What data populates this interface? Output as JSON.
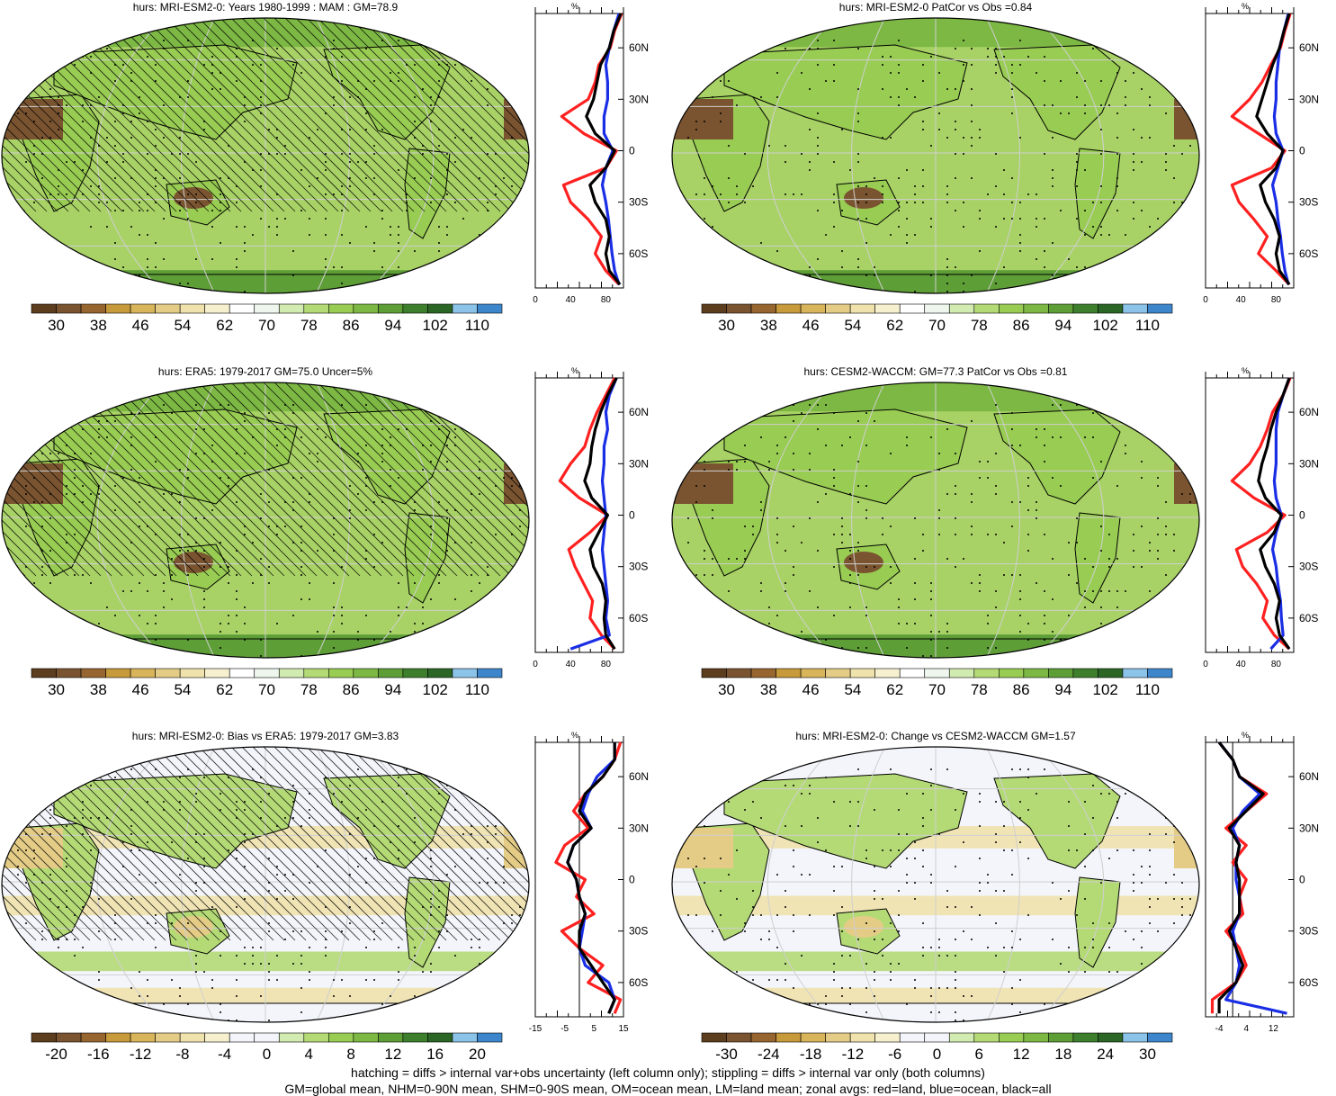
{
  "panels": [
    {
      "id": "p1",
      "title": "hurs: MRI-ESM2-0: Years 1980-1999 : MAM : GM=78.9",
      "type": "abs",
      "hatching": true,
      "colorbar": {
        "labels": [
          "30",
          "38",
          "46",
          "54",
          "62",
          "70",
          "78",
          "86",
          "94",
          "102",
          "110"
        ]
      },
      "zonal": {
        "unit": "%",
        "xticks": [
          "0",
          "40",
          "80"
        ],
        "xrange": [
          0,
          100
        ],
        "lat_labels": [
          "60N",
          "30N",
          "0",
          "30S",
          "60S"
        ]
      }
    },
    {
      "id": "p2",
      "title": "hurs: MRI-ESM2-0 PatCor vs Obs =0.84",
      "type": "abs",
      "hatching": false,
      "colorbar": {
        "labels": [
          "30",
          "38",
          "46",
          "54",
          "62",
          "70",
          "78",
          "86",
          "94",
          "102",
          "110"
        ]
      },
      "zonal": {
        "unit": "%",
        "xticks": [
          "0",
          "40",
          "80"
        ],
        "xrange": [
          0,
          100
        ],
        "lat_labels": [
          "60N",
          "30N",
          "0",
          "30S",
          "60S"
        ]
      }
    },
    {
      "id": "p3",
      "title": "hurs: ERA5: 1979-2017 GM=75.0 Uncer=5%",
      "type": "abs",
      "hatching": true,
      "colorbar": {
        "labels": [
          "30",
          "38",
          "46",
          "54",
          "62",
          "70",
          "78",
          "86",
          "94",
          "102",
          "110"
        ]
      },
      "zonal": {
        "unit": "%",
        "xticks": [
          "0",
          "40",
          "80"
        ],
        "xrange": [
          0,
          100
        ],
        "lat_labels": [
          "60N",
          "30N",
          "0",
          "30S",
          "60S"
        ]
      }
    },
    {
      "id": "p4",
      "title": "hurs: CESM2-WACCM: GM=77.3 PatCor vs Obs =0.81",
      "type": "abs",
      "hatching": false,
      "colorbar": {
        "labels": [
          "30",
          "38",
          "46",
          "54",
          "62",
          "70",
          "78",
          "86",
          "94",
          "102",
          "110"
        ]
      },
      "zonal": {
        "unit": "%",
        "xticks": [
          "0",
          "40",
          "80"
        ],
        "xrange": [
          0,
          100
        ],
        "lat_labels": [
          "60N",
          "30N",
          "0",
          "30S",
          "60S"
        ]
      }
    },
    {
      "id": "p5",
      "title": "hurs: MRI-ESM2-0: Bias vs ERA5: 1979-2017 GM=3.83",
      "type": "diff",
      "hatching": true,
      "colorbar": {
        "labels": [
          "-20",
          "-16",
          "-12",
          "-8",
          "-4",
          "0",
          "4",
          "8",
          "12",
          "16",
          "20"
        ]
      },
      "zonal": {
        "unit": "%",
        "xticks": [
          "-15",
          "-5",
          "5",
          "15"
        ],
        "xrange": [
          -15,
          15
        ],
        "lat_labels": [
          "60N",
          "30N",
          "0",
          "30S",
          "60S"
        ]
      }
    },
    {
      "id": "p6",
      "title": "hurs: MRI-ESM2-0: Change vs CESM2-WACCM GM=1.57",
      "type": "diff",
      "hatching": false,
      "colorbar": {
        "labels": [
          "-30",
          "-24",
          "-18",
          "-12",
          "-6",
          "0",
          "6",
          "12",
          "18",
          "24",
          "30"
        ]
      },
      "zonal": {
        "unit": "%",
        "xticks": [
          "-4",
          "4",
          "12"
        ],
        "xrange": [
          -8,
          18
        ],
        "lat_labels": [
          "60N",
          "30N",
          "0",
          "30S",
          "60S"
        ]
      }
    }
  ],
  "footer": {
    "line1": "hatching = diffs > internal var+obs uncertainty (left column only); stippling = diffs > internal var only (both columns)",
    "line2": "GM=global mean, NHM=0-90N mean, SHM=0-90S mean, OM=ocean mean, LM=land mean; zonal avgs: red=land, blue=ocean, black=all"
  },
  "colors": {
    "abs_scale": [
      "#5c3d1d",
      "#7a5430",
      "#97652f",
      "#c79a3b",
      "#d8b45b",
      "#e4cc86",
      "#efe2ad",
      "#f6f0cf",
      "#ffffff",
      "#eef6ee",
      "#d2ebb1",
      "#b4da76",
      "#98cc52",
      "#7cb843",
      "#5e9e37",
      "#3d7f2c",
      "#2b6626",
      "#8cc3e8",
      "#3d86cc"
    ],
    "diff_scale": [
      "#5c3d1d",
      "#7a5430",
      "#97652f",
      "#c79a3b",
      "#d8b45b",
      "#e4cc86",
      "#efe2ad",
      "#f6f0cf",
      "#f3f5fb",
      "#f3f5fb",
      "#d2ebb1",
      "#b4da76",
      "#98cc52",
      "#7cb843",
      "#5e9e37",
      "#3d7f2c",
      "#2b6626",
      "#8cc3e8",
      "#3d86cc"
    ],
    "land": "#ff2020",
    "ocean": "#1a2ee6",
    "all": "#000000"
  },
  "chart_data": [
    {
      "type": "line",
      "panel": "p1",
      "lat": [
        80,
        70,
        60,
        50,
        40,
        30,
        20,
        10,
        0,
        -10,
        -20,
        -30,
        -40,
        -50,
        -60,
        -70,
        -78
      ],
      "series": [
        {
          "values": [
            98,
            90,
            85,
            72,
            68,
            60,
            30,
            55,
            92,
            80,
            32,
            40,
            60,
            75,
            68,
            80,
            95
          ]
        },
        {
          "values": [
            95,
            89,
            84,
            80,
            82,
            82,
            78,
            78,
            88,
            80,
            76,
            80,
            83,
            85,
            87,
            90,
            95
          ]
        },
        {
          "values": [
            97,
            89,
            84,
            74,
            70,
            66,
            58,
            68,
            90,
            80,
            62,
            68,
            80,
            84,
            80,
            84,
            96
          ]
        }
      ]
    },
    {
      "type": "line",
      "panel": "p2",
      "lat": [
        80,
        70,
        60,
        50,
        40,
        30,
        20,
        10,
        0,
        -10,
        -20,
        -30,
        -40,
        -50,
        -60,
        -70,
        -78
      ],
      "series": [
        {
          "values": [
            96,
            90,
            85,
            74,
            64,
            50,
            30,
            60,
            90,
            75,
            30,
            38,
            55,
            70,
            60,
            80,
            95
          ]
        },
        {
          "values": [
            94,
            89,
            84,
            82,
            80,
            80,
            78,
            80,
            88,
            82,
            76,
            80,
            82,
            85,
            87,
            90,
            94
          ]
        },
        {
          "values": [
            95,
            89,
            84,
            76,
            70,
            64,
            58,
            70,
            88,
            80,
            62,
            68,
            78,
            84,
            80,
            84,
            95
          ]
        }
      ]
    },
    {
      "type": "line",
      "panel": "p3",
      "lat": [
        80,
        70,
        60,
        50,
        40,
        30,
        20,
        10,
        0,
        -10,
        -20,
        -30,
        -40,
        -50,
        -60,
        -70,
        -78
      ],
      "series": [
        {
          "values": [
            90,
            80,
            70,
            62,
            56,
            40,
            28,
            50,
            82,
            62,
            38,
            45,
            55,
            65,
            62,
            75,
            90
          ]
        },
        {
          "values": [
            92,
            84,
            80,
            82,
            78,
            78,
            76,
            78,
            80,
            78,
            76,
            78,
            80,
            82,
            80,
            84,
            40
          ]
        },
        {
          "values": [
            92,
            82,
            74,
            68,
            64,
            62,
            56,
            64,
            82,
            72,
            62,
            66,
            76,
            80,
            78,
            80,
            90
          ]
        }
      ]
    },
    {
      "type": "line",
      "panel": "p4",
      "lat": [
        80,
        70,
        60,
        50,
        40,
        30,
        20,
        10,
        0,
        -10,
        -20,
        -30,
        -40,
        -50,
        -60,
        -70,
        -78
      ],
      "series": [
        {
          "values": [
            96,
            88,
            76,
            70,
            62,
            50,
            30,
            55,
            90,
            70,
            35,
            42,
            58,
            70,
            65,
            78,
            95
          ]
        },
        {
          "values": [
            95,
            88,
            82,
            80,
            80,
            80,
            78,
            80,
            86,
            80,
            76,
            80,
            82,
            85,
            86,
            88,
            74
          ]
        },
        {
          "values": [
            95,
            88,
            80,
            74,
            70,
            64,
            60,
            68,
            86,
            78,
            62,
            68,
            78,
            84,
            80,
            84,
            95
          ]
        }
      ]
    },
    {
      "type": "line",
      "panel": "p5",
      "lat": [
        80,
        70,
        60,
        50,
        40,
        30,
        20,
        10,
        0,
        -10,
        -20,
        -30,
        -40,
        -50,
        -60,
        -70,
        -78
      ],
      "series": [
        {
          "values": [
            14,
            12,
            8,
            2,
            -2,
            3,
            -5,
            -8,
            2,
            -1,
            5,
            -6,
            0,
            8,
            3,
            14,
            12
          ]
        },
        {
          "values": [
            12,
            12,
            6,
            3,
            1,
            4,
            -2,
            -4,
            -1,
            0,
            2,
            1,
            0,
            2,
            10,
            12,
            10
          ]
        },
        {
          "values": [
            12,
            12,
            8,
            2,
            0,
            4,
            -2,
            -4,
            -1,
            0,
            2,
            0,
            0,
            4,
            8,
            12,
            10
          ]
        }
      ]
    },
    {
      "type": "line",
      "panel": "p6",
      "lat": [
        80,
        70,
        60,
        50,
        40,
        30,
        20,
        10,
        0,
        -10,
        -20,
        -30,
        -40,
        -50,
        -60,
        -70,
        -78
      ],
      "series": [
        {
          "values": [
            -4,
            0,
            2,
            10,
            4,
            -2,
            4,
            0,
            4,
            2,
            3,
            -2,
            2,
            4,
            1,
            -6,
            -6
          ]
        },
        {
          "values": [
            -4,
            0,
            2,
            8,
            3,
            0,
            2,
            1,
            1,
            2,
            2,
            0,
            1,
            2,
            1,
            -2,
            16
          ]
        },
        {
          "values": [
            -4,
            0,
            2,
            9,
            4,
            -1,
            2,
            1,
            2,
            2,
            2,
            -1,
            1,
            3,
            1,
            -4,
            -4
          ]
        }
      ]
    }
  ]
}
